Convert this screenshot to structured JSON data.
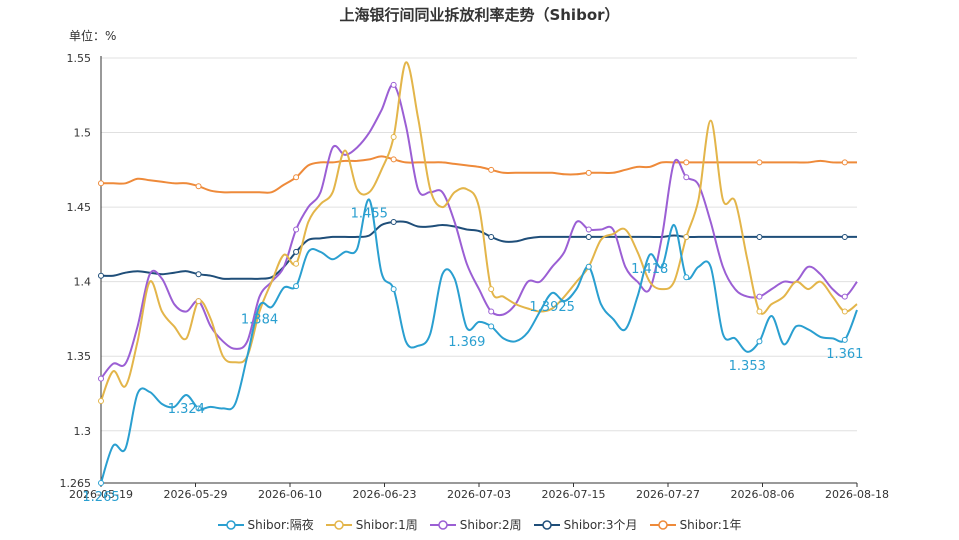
{
  "chart_data": {
    "type": "line",
    "title": "上海银行间同业拆放利率走势（Shibor）",
    "ylabel": "单位：%",
    "ylim": [
      1.265,
      1.55
    ],
    "yticks": [
      "1.265",
      "1.3",
      "1.35",
      "1.4",
      "1.45",
      "1.5",
      "1.55"
    ],
    "ytick_values": [
      1.265,
      1.3,
      1.35,
      1.4,
      1.45,
      1.5,
      1.55
    ],
    "xticks": [
      "2026-05-19",
      "2026-05-29",
      "2026-06-10",
      "2026-06-23",
      "2026-07-03",
      "2026-07-15",
      "2026-07-27",
      "2026-08-06",
      "2026-08-18"
    ],
    "grid": true,
    "legend_position": "bottom",
    "series": [
      {
        "name": "Shibor:隔夜",
        "color": "#2a9fd0",
        "values": [
          1.265,
          1.29,
          1.288,
          1.325,
          1.326,
          1.318,
          1.316,
          1.324,
          1.315,
          1.316,
          1.315,
          1.318,
          1.35,
          1.384,
          1.383,
          1.396,
          1.397,
          1.42,
          1.42,
          1.415,
          1.42,
          1.422,
          1.455,
          1.406,
          1.395,
          1.36,
          1.357,
          1.365,
          1.405,
          1.402,
          1.369,
          1.373,
          1.37,
          1.362,
          1.36,
          1.366,
          1.38,
          1.3925,
          1.387,
          1.395,
          1.41,
          1.385,
          1.375,
          1.368,
          1.39,
          1.418,
          1.41,
          1.438,
          1.403,
          1.41,
          1.41,
          1.365,
          1.362,
          1.353,
          1.36,
          1.377,
          1.358,
          1.37,
          1.368,
          1.363,
          1.362,
          1.361,
          1.381
        ],
        "point_labels": [
          {
            "index": 0,
            "text": "1.265"
          },
          {
            "index": 7,
            "text": "1.324"
          },
          {
            "index": 13,
            "text": "1.384"
          },
          {
            "index": 22,
            "text": "1.455"
          },
          {
            "index": 30,
            "text": "1.369"
          },
          {
            "index": 37,
            "text": "1.3925"
          },
          {
            "index": 45,
            "text": "1.418"
          },
          {
            "index": 53,
            "text": "1.353"
          },
          {
            "index": 61,
            "text": "1.361"
          }
        ]
      },
      {
        "name": "Shibor:1周",
        "color": "#e3b54a",
        "values": [
          1.32,
          1.34,
          1.33,
          1.36,
          1.4,
          1.38,
          1.37,
          1.362,
          1.387,
          1.375,
          1.35,
          1.346,
          1.35,
          1.38,
          1.4,
          1.418,
          1.412,
          1.44,
          1.452,
          1.46,
          1.488,
          1.462,
          1.46,
          1.475,
          1.497,
          1.547,
          1.51,
          1.462,
          1.45,
          1.46,
          1.462,
          1.45,
          1.395,
          1.39,
          1.385,
          1.382,
          1.38,
          1.382,
          1.39,
          1.4,
          1.41,
          1.428,
          1.432,
          1.435,
          1.42,
          1.4,
          1.395,
          1.4,
          1.43,
          1.455,
          1.508,
          1.455,
          1.454,
          1.415,
          1.38,
          1.385,
          1.39,
          1.4,
          1.395,
          1.4,
          1.39,
          1.38,
          1.385
        ]
      },
      {
        "name": "Shibor:2周",
        "color": "#9b5fd4",
        "values": [
          1.335,
          1.345,
          1.345,
          1.37,
          1.405,
          1.402,
          1.385,
          1.38,
          1.387,
          1.37,
          1.36,
          1.355,
          1.36,
          1.39,
          1.4,
          1.41,
          1.435,
          1.45,
          1.46,
          1.49,
          1.485,
          1.49,
          1.5,
          1.515,
          1.532,
          1.505,
          1.462,
          1.46,
          1.46,
          1.44,
          1.412,
          1.395,
          1.38,
          1.378,
          1.385,
          1.4,
          1.4,
          1.41,
          1.42,
          1.44,
          1.435,
          1.435,
          1.435,
          1.41,
          1.4,
          1.395,
          1.43,
          1.48,
          1.47,
          1.465,
          1.44,
          1.41,
          1.395,
          1.39,
          1.39,
          1.395,
          1.4,
          1.4,
          1.41,
          1.405,
          1.395,
          1.39,
          1.4
        ]
      },
      {
        "name": "Shibor:3个月",
        "color": "#1f4e79",
        "values": [
          1.404,
          1.404,
          1.406,
          1.407,
          1.406,
          1.405,
          1.406,
          1.407,
          1.405,
          1.404,
          1.402,
          1.402,
          1.402,
          1.402,
          1.403,
          1.41,
          1.42,
          1.428,
          1.429,
          1.43,
          1.43,
          1.43,
          1.431,
          1.438,
          1.44,
          1.44,
          1.437,
          1.437,
          1.438,
          1.437,
          1.435,
          1.434,
          1.43,
          1.427,
          1.427,
          1.429,
          1.43,
          1.43,
          1.43,
          1.43,
          1.43,
          1.43,
          1.43,
          1.43,
          1.43,
          1.43,
          1.43,
          1.431,
          1.43,
          1.43,
          1.43,
          1.43,
          1.43,
          1.43,
          1.43,
          1.43,
          1.43,
          1.43,
          1.43,
          1.43,
          1.43,
          1.43,
          1.43
        ]
      },
      {
        "name": "Shibor:1年",
        "color": "#ee8a3a",
        "values": [
          1.466,
          1.466,
          1.466,
          1.469,
          1.468,
          1.467,
          1.466,
          1.466,
          1.464,
          1.461,
          1.46,
          1.46,
          1.46,
          1.46,
          1.46,
          1.465,
          1.47,
          1.478,
          1.48,
          1.48,
          1.481,
          1.481,
          1.482,
          1.484,
          1.482,
          1.48,
          1.48,
          1.48,
          1.48,
          1.479,
          1.478,
          1.477,
          1.475,
          1.473,
          1.473,
          1.473,
          1.473,
          1.473,
          1.472,
          1.472,
          1.473,
          1.473,
          1.473,
          1.475,
          1.477,
          1.477,
          1.48,
          1.48,
          1.48,
          1.48,
          1.48,
          1.48,
          1.48,
          1.48,
          1.48,
          1.48,
          1.48,
          1.48,
          1.48,
          1.481,
          1.48,
          1.48,
          1.48
        ]
      }
    ]
  }
}
